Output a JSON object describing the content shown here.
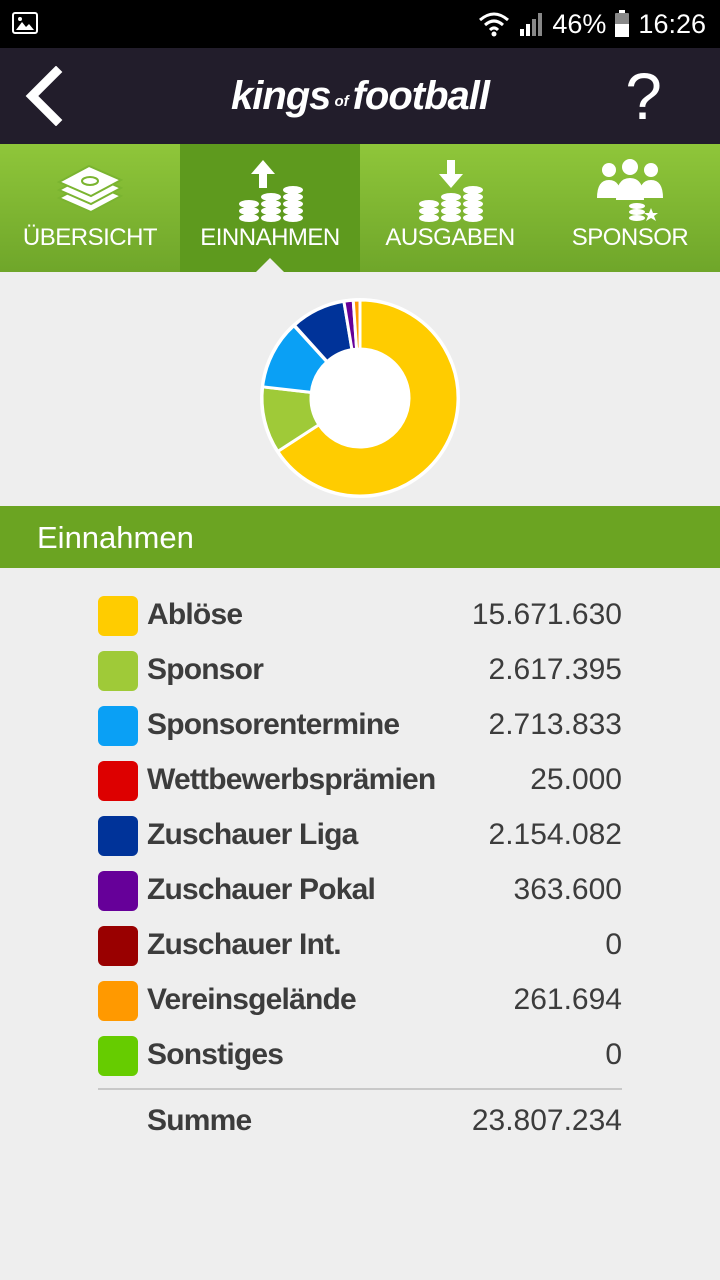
{
  "status_bar": {
    "battery_percent": "46%",
    "time": "16:26",
    "icons": [
      "gallery-icon",
      "wifi-icon",
      "signal-icon",
      "battery-icon"
    ]
  },
  "header": {
    "logo_main_1": "kings",
    "logo_small": "of",
    "logo_main_2": "football",
    "help_label": "?",
    "back_icon": "chevron-left-icon"
  },
  "tabs": [
    {
      "label": "ÜBERSICHT",
      "icon": "money-stack-icon",
      "active": false
    },
    {
      "label": "EINNAHMEN",
      "icon": "coins-up-icon",
      "active": true
    },
    {
      "label": "AUSGABEN",
      "icon": "coins-down-icon",
      "active": false
    },
    {
      "label": "SPONSOR",
      "icon": "sponsor-group-icon",
      "active": false
    }
  ],
  "section_title": "Einnahmen",
  "chart_data": {
    "type": "pie",
    "style": "donut",
    "categories": [
      "Ablöse",
      "Sponsor",
      "Sponsorentermine",
      "Wettbewerbsprämien",
      "Zuschauer Liga",
      "Zuschauer Pokal",
      "Zuschauer Int.",
      "Vereinsgelände",
      "Sonstiges"
    ],
    "values": [
      15671630,
      2617395,
      2713833,
      25000,
      2154082,
      363600,
      0,
      261694,
      0
    ],
    "colors": [
      "#ffcc00",
      "#9fca38",
      "#0aa0f5",
      "#dd0000",
      "#003399",
      "#660099",
      "#990000",
      "#ff9900",
      "#66cc00"
    ]
  },
  "items": [
    {
      "label": "Ablöse",
      "value": "15.671.630",
      "color": "#ffcc00"
    },
    {
      "label": "Sponsor",
      "value": "2.617.395",
      "color": "#9fca38"
    },
    {
      "label": "Sponsorentermine",
      "value": "2.713.833",
      "color": "#0aa0f5"
    },
    {
      "label": "Wettbewerbsprämien",
      "value": "25.000",
      "color": "#dd0000"
    },
    {
      "label": "Zuschauer Liga",
      "value": "2.154.082",
      "color": "#003399"
    },
    {
      "label": "Zuschauer Pokal",
      "value": "363.600",
      "color": "#660099"
    },
    {
      "label": "Zuschauer Int.",
      "value": "0",
      "color": "#990000"
    },
    {
      "label": "Vereinsgelände",
      "value": "261.694",
      "color": "#ff9900"
    },
    {
      "label": "Sonstiges",
      "value": "0",
      "color": "#66cc00"
    }
  ],
  "sum": {
    "label": "Summe",
    "value": "23.807.234"
  }
}
